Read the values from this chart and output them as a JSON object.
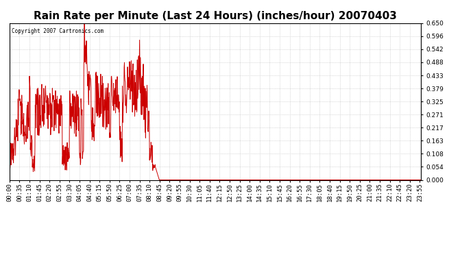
{
  "title": "Rain Rate per Minute (Last 24 Hours) (inches/hour) 20070403",
  "copyright_text": "Copyright 2007 Cartronics.com",
  "line_color": "#CC0000",
  "bg_color": "#ffffff",
  "plot_bg_color": "#ffffff",
  "grid_color": "#bbbbbb",
  "yticks": [
    0.0,
    0.054,
    0.108,
    0.163,
    0.217,
    0.271,
    0.325,
    0.379,
    0.433,
    0.488,
    0.542,
    0.596,
    0.65
  ],
  "ylim": [
    0.0,
    0.65
  ],
  "title_fontsize": 11,
  "tick_fontsize": 6.5,
  "xtick_interval_minutes": 35,
  "total_minutes": 1440,
  "step_minutes": 1
}
